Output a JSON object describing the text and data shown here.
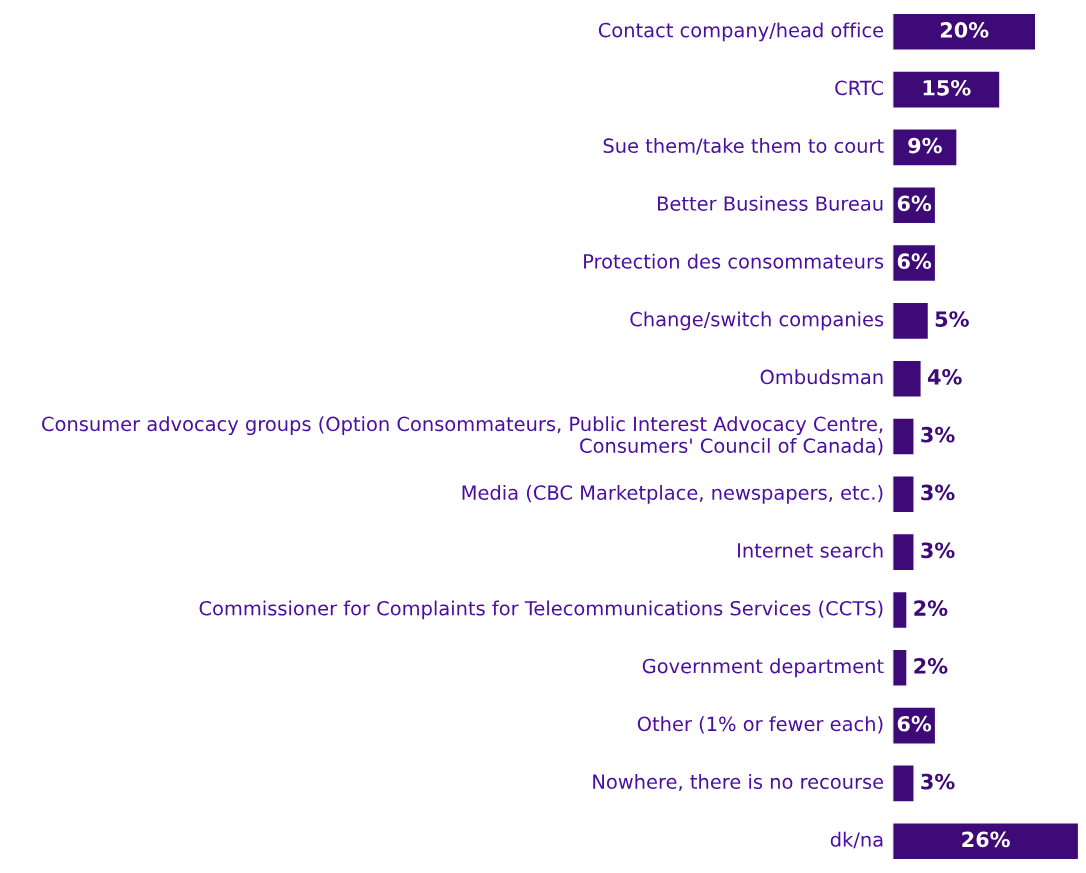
{
  "chart_data": {
    "type": "bar",
    "orientation": "horizontal",
    "data_labels": true,
    "categories": [
      "Contact company/head office",
      "CRTC",
      "Sue them/take them to court",
      "Better Business Bureau",
      "Protection des consommateurs",
      "Change/switch companies",
      "Ombudsman",
      "Consumer advocacy groups (Option Consommateurs, Public Interest Advocacy Centre, Consumers' Council of Canada)",
      "Media (CBC Marketplace, newspapers, etc.)",
      "Internet search",
      "Commissioner for Complaints for Telecommunications Services (CCTS)",
      "Government department",
      "Other (1% or fewer each)",
      "Nowhere, there is no recourse",
      "dk/na"
    ],
    "values": [
      20,
      15,
      9,
      6,
      6,
      5,
      4,
      3,
      3,
      3,
      2,
      2,
      6,
      3,
      26
    ],
    "value_labels": [
      "20%",
      "15%",
      "9%",
      "6%",
      "6%",
      "5%",
      "4%",
      "3%",
      "3%",
      "3%",
      "2%",
      "2%",
      "6%",
      "3%",
      "26%"
    ],
    "color": "#3d0a78"
  }
}
